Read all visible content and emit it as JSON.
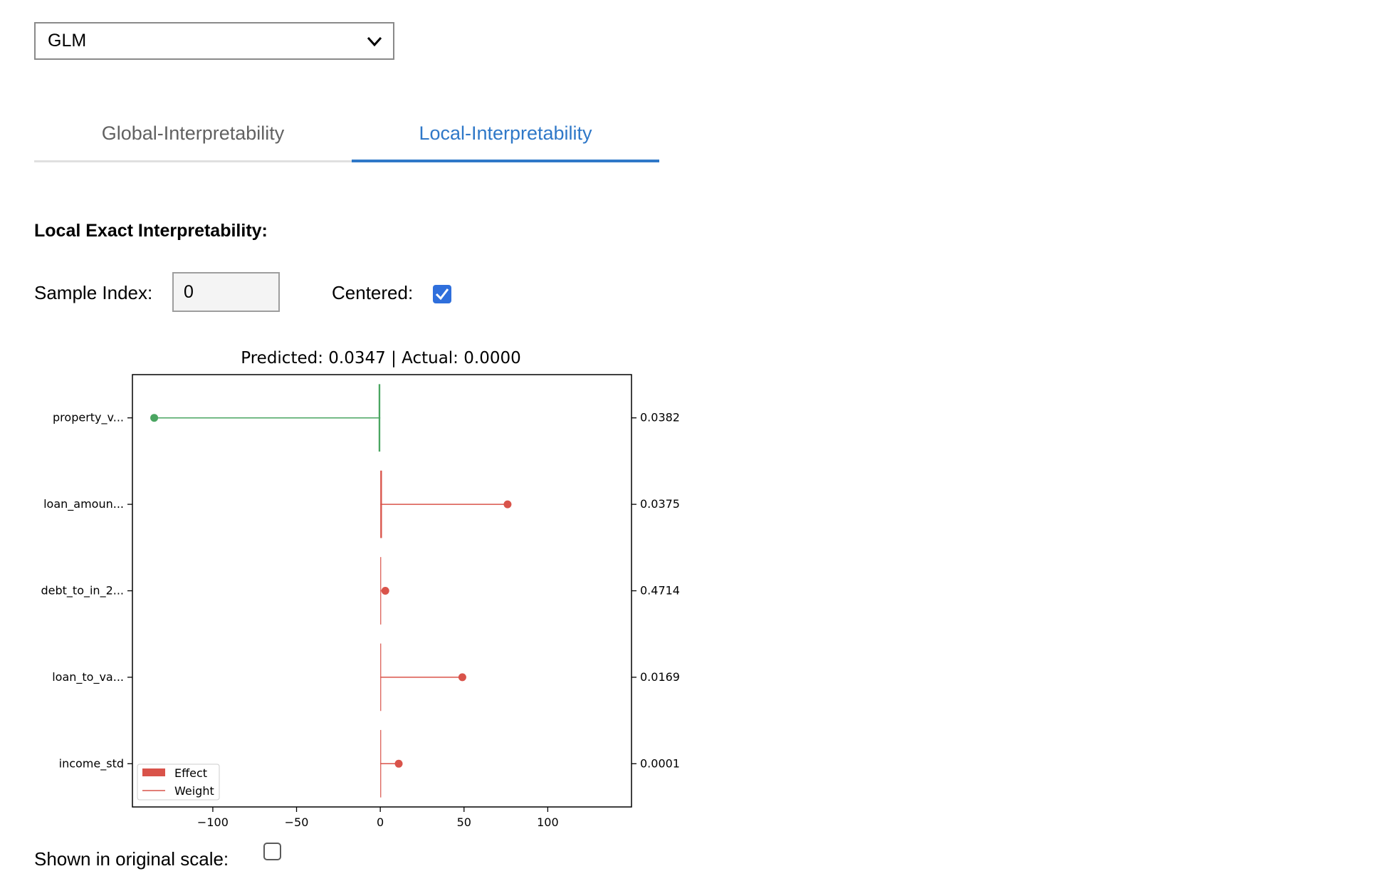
{
  "model_select": {
    "value": "GLM",
    "icon": "chevron-down-icon"
  },
  "tabs": [
    {
      "label": "Global-Interpretability",
      "active": false
    },
    {
      "label": "Local-Interpretability",
      "active": true
    }
  ],
  "local": {
    "section_title": "Local Exact Interpretability:",
    "sample_index_label": "Sample Index:",
    "sample_index_value": "0",
    "centered_label": "Centered:",
    "centered_checked": true,
    "original_scale_label": "Shown in original scale:",
    "original_scale_checked": false
  },
  "colors": {
    "accent": "#2f78c8",
    "positive": "#d9534a",
    "negative": "#4aa561"
  },
  "chart_data": {
    "type": "bar",
    "title": "Predicted: 0.0347 | Actual: 0.0000",
    "xlim": [
      -148,
      150
    ],
    "xticks": [
      -100,
      -50,
      0,
      50,
      100
    ],
    "xtick_labels": [
      "−100",
      "−50",
      "0",
      "50",
      "100"
    ],
    "features": [
      "property_v...",
      "loan_amoun...",
      "debt_to_in_2...",
      "loan_to_va...",
      "income_std"
    ],
    "right_labels": [
      "0.0382",
      "0.0375",
      "0.4714",
      "0.0169",
      "0.0001"
    ],
    "effect": [
      -1,
      1,
      0,
      0,
      0
    ],
    "weight": [
      -135,
      76,
      3,
      49,
      11
    ],
    "legend": [
      "Effect",
      "Weight"
    ],
    "legend_position": "lower left"
  }
}
